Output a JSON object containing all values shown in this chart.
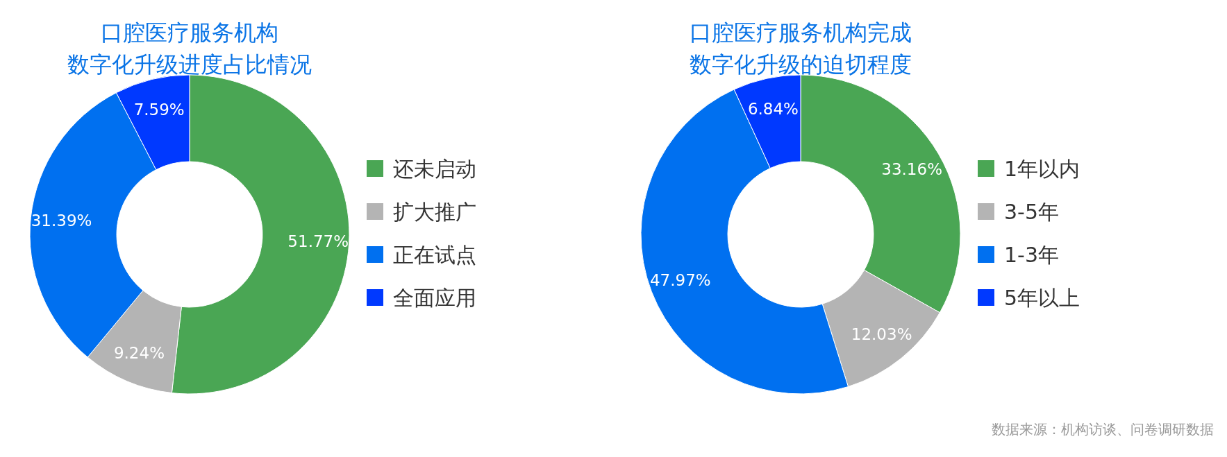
{
  "chart_data": [
    {
      "type": "donut",
      "title": "口腔医疗服务机构",
      "subtitle": "数字化升级进度占比情况",
      "categories": [
        "还未启动",
        "扩大推广",
        "正在试点",
        "全面应用"
      ],
      "values": [
        51.77,
        9.24,
        31.39,
        7.59
      ],
      "colors": [
        "#4aa654",
        "#b4b4b4",
        "#0070f0",
        "#0039ff"
      ],
      "value_labels": [
        "51.77%",
        "9.24%",
        "31.39%",
        "7.59%"
      ],
      "legend": "right"
    },
    {
      "type": "donut",
      "title": "口腔医疗服务机构完成",
      "subtitle": "数字化升级的迫切程度",
      "categories": [
        "1年以内",
        "3-5年",
        "1-3年",
        "5年以上"
      ],
      "values": [
        33.16,
        12.03,
        47.97,
        6.84
      ],
      "colors": [
        "#4aa654",
        "#b4b4b4",
        "#0070f0",
        "#0039ff"
      ],
      "value_labels": [
        "33.16%",
        "12.03%",
        "47.97%",
        "6.84%"
      ],
      "legend": "right",
      "annotations": [
        "数据来源：机构访谈、问卷调研数据"
      ]
    }
  ]
}
